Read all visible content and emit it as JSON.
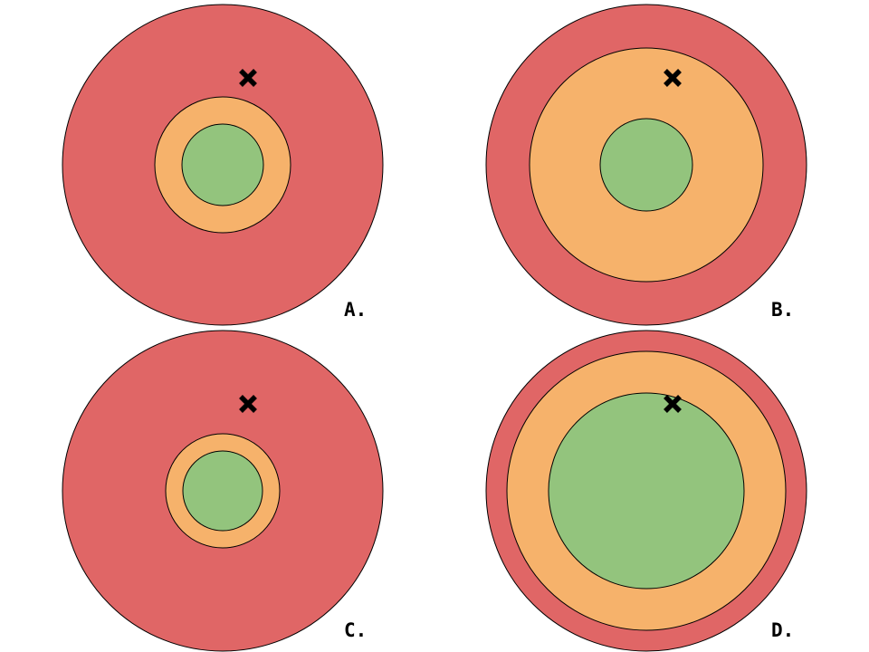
{
  "colors": {
    "outer": "#e06666",
    "middle": "#f6b26b",
    "inner": "#93c47d",
    "outline": "#000000",
    "marker": "#000000",
    "background": "#ffffff"
  },
  "panels": [
    {
      "label": "A.",
      "marker_icon": "x-marker-icon"
    },
    {
      "label": "B.",
      "marker_icon": "x-marker-icon"
    },
    {
      "label": "C.",
      "marker_icon": "x-marker-icon"
    },
    {
      "label": "D.",
      "marker_icon": "x-marker-icon"
    }
  ]
}
